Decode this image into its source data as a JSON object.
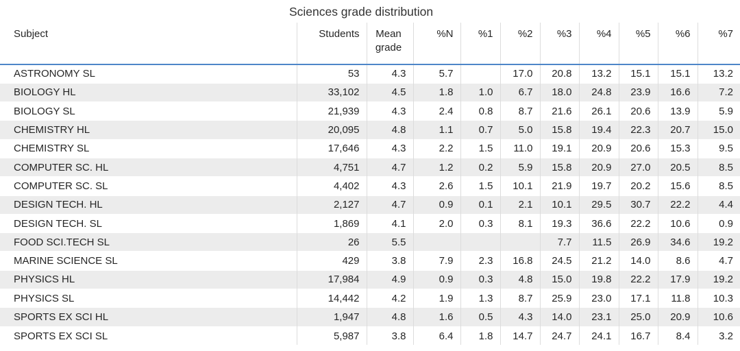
{
  "title": "Sciences grade distribution",
  "colors": {
    "header_rule_blue": "#4e86c8",
    "row_stripe_gray": "#ececec",
    "grid_line_gray": "#dcdcdc",
    "text": "#262626"
  },
  "chart_data": {
    "type": "table",
    "title": "Sciences grade distribution",
    "columns": [
      "Subject",
      "Students",
      "Mean grade",
      "%N",
      "%1",
      "%2",
      "%3",
      "%4",
      "%5",
      "%6",
      "%7"
    ],
    "rows": [
      [
        "ASTRONOMY SL",
        "53",
        "4.3",
        "5.7",
        "",
        "17.0",
        "20.8",
        "13.2",
        "15.1",
        "15.1",
        "13.2"
      ],
      [
        "BIOLOGY HL",
        "33,102",
        "4.5",
        "1.8",
        "1.0",
        "6.7",
        "18.0",
        "24.8",
        "23.9",
        "16.6",
        "7.2"
      ],
      [
        "BIOLOGY SL",
        "21,939",
        "4.3",
        "2.4",
        "0.8",
        "8.7",
        "21.6",
        "26.1",
        "20.6",
        "13.9",
        "5.9"
      ],
      [
        "CHEMISTRY HL",
        "20,095",
        "4.8",
        "1.1",
        "0.7",
        "5.0",
        "15.8",
        "19.4",
        "22.3",
        "20.7",
        "15.0"
      ],
      [
        "CHEMISTRY SL",
        "17,646",
        "4.3",
        "2.2",
        "1.5",
        "11.0",
        "19.1",
        "20.9",
        "20.6",
        "15.3",
        "9.5"
      ],
      [
        "COMPUTER SC. HL",
        "4,751",
        "4.7",
        "1.2",
        "0.2",
        "5.9",
        "15.8",
        "20.9",
        "27.0",
        "20.5",
        "8.5"
      ],
      [
        "COMPUTER SC. SL",
        "4,402",
        "4.3",
        "2.6",
        "1.5",
        "10.1",
        "21.9",
        "19.7",
        "20.2",
        "15.6",
        "8.5"
      ],
      [
        "DESIGN TECH. HL",
        "2,127",
        "4.7",
        "0.9",
        "0.1",
        "2.1",
        "10.1",
        "29.5",
        "30.7",
        "22.2",
        "4.4"
      ],
      [
        "DESIGN TECH. SL",
        "1,869",
        "4.1",
        "2.0",
        "0.3",
        "8.1",
        "19.3",
        "36.6",
        "22.2",
        "10.6",
        "0.9"
      ],
      [
        "FOOD SCI.TECH SL",
        "26",
        "5.5",
        "",
        "",
        "",
        "7.7",
        "11.5",
        "26.9",
        "34.6",
        "19.2"
      ],
      [
        "MARINE SCIENCE SL",
        "429",
        "3.8",
        "7.9",
        "2.3",
        "16.8",
        "24.5",
        "21.2",
        "14.0",
        "8.6",
        "4.7"
      ],
      [
        "PHYSICS HL",
        "17,984",
        "4.9",
        "0.9",
        "0.3",
        "4.8",
        "15.0",
        "19.8",
        "22.2",
        "17.9",
        "19.2"
      ],
      [
        "PHYSICS SL",
        "14,442",
        "4.2",
        "1.9",
        "1.3",
        "8.7",
        "25.9",
        "23.0",
        "17.1",
        "11.8",
        "10.3"
      ],
      [
        "SPORTS EX SCI HL",
        "1,947",
        "4.8",
        "1.6",
        "0.5",
        "4.3",
        "14.0",
        "23.1",
        "25.0",
        "20.9",
        "10.6"
      ],
      [
        "SPORTS EX SCI SL",
        "5,987",
        "3.8",
        "6.4",
        "1.8",
        "14.7",
        "24.7",
        "24.1",
        "16.7",
        "8.4",
        "3.2"
      ]
    ]
  }
}
